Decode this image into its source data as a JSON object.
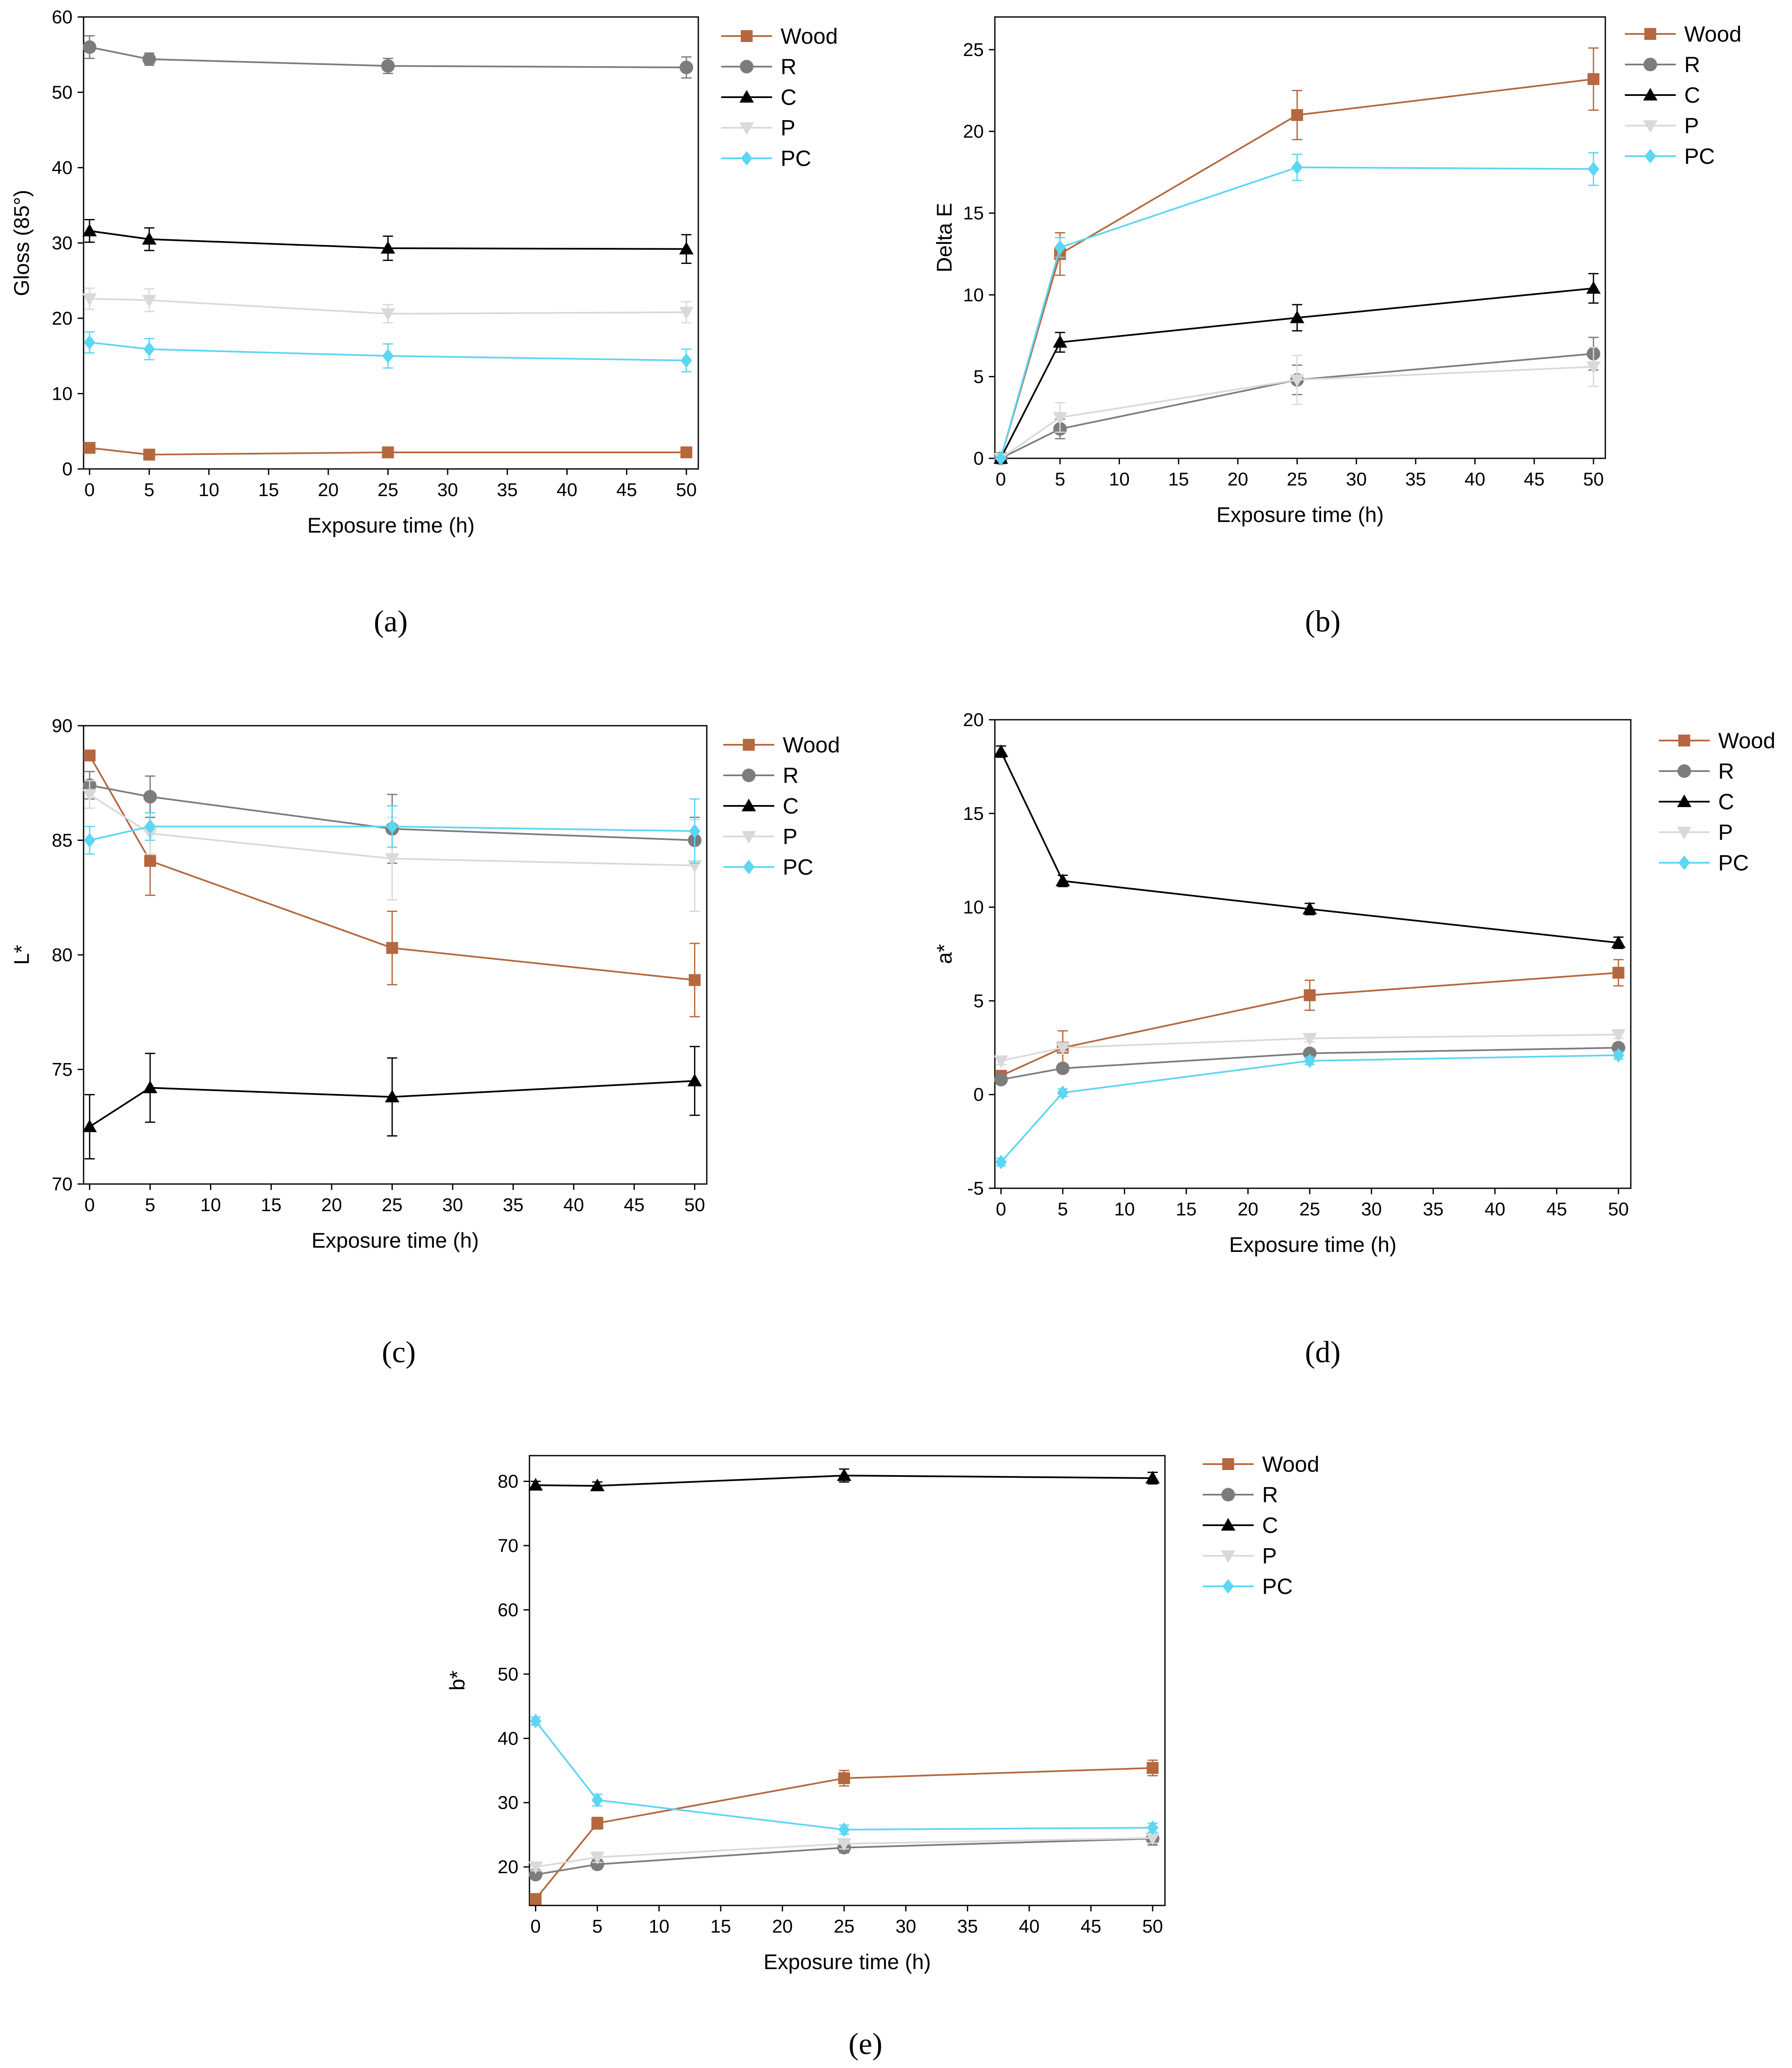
{
  "figure": {
    "series_styles": [
      {
        "name": "Wood",
        "color": "#B5683F",
        "marker": "square"
      },
      {
        "name": "R",
        "color": "#7C7C7C",
        "marker": "circle"
      },
      {
        "name": "C",
        "color": "#000000",
        "marker": "triangle-up"
      },
      {
        "name": "P",
        "color": "#D9D9D9",
        "marker": "triangle-down"
      },
      {
        "name": "PC",
        "color": "#5CD6F2",
        "marker": "diamond"
      }
    ]
  },
  "chart_data": [
    {
      "id": "a",
      "panel_label": "(a)",
      "type": "line",
      "title": "",
      "xlabel": "Exposure time (h)",
      "ylabel": "Gloss (85°)",
      "x": [
        0,
        5,
        25,
        50
      ],
      "xlim": [
        -0.5,
        51
      ],
      "ylim": [
        0,
        60
      ],
      "xticks": [
        0,
        5,
        10,
        15,
        20,
        25,
        30,
        35,
        40,
        45,
        50
      ],
      "yticks": [
        0,
        10,
        20,
        30,
        40,
        50,
        60
      ],
      "legend_position": "right",
      "series": [
        {
          "name": "Wood",
          "values": [
            2.8,
            1.9,
            2.2,
            2.2
          ],
          "errors": [
            0.3,
            0.3,
            0.3,
            0.3
          ]
        },
        {
          "name": "R",
          "values": [
            56.0,
            54.4,
            53.5,
            53.3
          ],
          "errors": [
            1.5,
            0.8,
            1.0,
            1.4
          ]
        },
        {
          "name": "C",
          "values": [
            31.6,
            30.5,
            29.3,
            29.2
          ],
          "errors": [
            1.5,
            1.5,
            1.6,
            1.9
          ]
        },
        {
          "name": "P",
          "values": [
            22.6,
            22.4,
            20.6,
            20.8
          ],
          "errors": [
            1.4,
            1.5,
            1.2,
            1.4
          ]
        },
        {
          "name": "PC",
          "values": [
            16.8,
            15.9,
            15.0,
            14.4
          ],
          "errors": [
            1.4,
            1.4,
            1.6,
            1.5
          ]
        }
      ]
    },
    {
      "id": "b",
      "panel_label": "(b)",
      "type": "line",
      "title": "",
      "xlabel": "Exposure time (h)",
      "ylabel": "Delta E",
      "x": [
        0,
        5,
        25,
        50
      ],
      "xlim": [
        -0.5,
        51
      ],
      "ylim": [
        0,
        27
      ],
      "xticks": [
        0,
        5,
        10,
        15,
        20,
        25,
        30,
        35,
        40,
        45,
        50
      ],
      "yticks": [
        0,
        5,
        10,
        15,
        20,
        25
      ],
      "legend_position": "right",
      "series": [
        {
          "name": "Wood",
          "values": [
            0,
            12.5,
            21.0,
            23.2
          ],
          "errors": [
            0,
            1.3,
            1.5,
            1.9
          ]
        },
        {
          "name": "R",
          "values": [
            0,
            1.8,
            4.8,
            6.4
          ],
          "errors": [
            0,
            0.6,
            0.9,
            1.0
          ]
        },
        {
          "name": "C",
          "values": [
            0,
            7.1,
            8.6,
            10.4
          ],
          "errors": [
            0,
            0.6,
            0.8,
            0.9
          ]
        },
        {
          "name": "P",
          "values": [
            0,
            2.5,
            4.8,
            5.6
          ],
          "errors": [
            0,
            0.9,
            1.5,
            1.2
          ]
        },
        {
          "name": "PC",
          "values": [
            0,
            12.9,
            17.8,
            17.7
          ],
          "errors": [
            0,
            0.6,
            0.8,
            1.0
          ]
        }
      ]
    },
    {
      "id": "c",
      "panel_label": "(c)",
      "type": "line",
      "title": "",
      "xlabel": "Exposure time (h)",
      "ylabel": "L*",
      "x": [
        0,
        5,
        25,
        50
      ],
      "xlim": [
        -0.5,
        51
      ],
      "ylim": [
        70,
        90
      ],
      "xticks": [
        0,
        5,
        10,
        15,
        20,
        25,
        30,
        35,
        40,
        45,
        50
      ],
      "yticks": [
        70,
        75,
        80,
        85,
        90
      ],
      "legend_position": "right",
      "series": [
        {
          "name": "Wood",
          "values": [
            88.7,
            84.1,
            80.3,
            78.9
          ],
          "errors": [
            0.2,
            1.5,
            1.6,
            1.6
          ]
        },
        {
          "name": "R",
          "values": [
            87.4,
            86.9,
            85.5,
            85.0
          ],
          "errors": [
            0.6,
            0.9,
            1.5,
            1.0
          ]
        },
        {
          "name": "C",
          "values": [
            72.5,
            74.2,
            73.8,
            74.5
          ],
          "errors": [
            1.4,
            1.5,
            1.7,
            1.5
          ]
        },
        {
          "name": "P",
          "values": [
            87.0,
            85.3,
            84.2,
            83.9
          ],
          "errors": [
            0.6,
            0.9,
            1.8,
            2.0
          ]
        },
        {
          "name": "PC",
          "values": [
            85.0,
            85.6,
            85.6,
            85.4
          ],
          "errors": [
            0.6,
            0.6,
            0.9,
            1.4
          ]
        }
      ]
    },
    {
      "id": "d",
      "panel_label": "(d)",
      "type": "line",
      "title": "",
      "xlabel": "Exposure time (h)",
      "ylabel": "a*",
      "x": [
        0,
        5,
        25,
        50
      ],
      "xlim": [
        -0.5,
        51
      ],
      "ylim": [
        -5,
        20
      ],
      "xticks": [
        0,
        5,
        10,
        15,
        20,
        25,
        30,
        35,
        40,
        45,
        50
      ],
      "yticks": [
        -5,
        0,
        5,
        10,
        15,
        20
      ],
      "legend_position": "right",
      "series": [
        {
          "name": "Wood",
          "values": [
            1.0,
            2.5,
            5.3,
            6.5
          ],
          "errors": [
            0.2,
            0.9,
            0.8,
            0.7
          ]
        },
        {
          "name": "R",
          "values": [
            0.8,
            1.4,
            2.2,
            2.5
          ],
          "errors": [
            0.2,
            0.2,
            0.2,
            0.2
          ]
        },
        {
          "name": "C",
          "values": [
            18.3,
            11.4,
            9.9,
            8.1
          ],
          "errors": [
            0.3,
            0.3,
            0.3,
            0.3
          ]
        },
        {
          "name": "P",
          "values": [
            1.8,
            2.5,
            3.0,
            3.2
          ],
          "errors": [
            0.2,
            0.2,
            0.2,
            0.2
          ]
        },
        {
          "name": "PC",
          "values": [
            -3.6,
            0.1,
            1.8,
            2.1
          ],
          "errors": [
            0.2,
            0.2,
            0.2,
            0.2
          ]
        }
      ]
    },
    {
      "id": "e",
      "panel_label": "(e)",
      "type": "line",
      "title": "",
      "xlabel": "Exposure time (h)",
      "ylabel": "b*",
      "x": [
        0,
        5,
        25,
        50
      ],
      "xlim": [
        -0.5,
        51
      ],
      "ylim": [
        14,
        84
      ],
      "xticks": [
        0,
        5,
        10,
        15,
        20,
        25,
        30,
        35,
        40,
        45,
        50
      ],
      "yticks": [
        20,
        30,
        40,
        50,
        60,
        70,
        80
      ],
      "legend_position": "right",
      "series": [
        {
          "name": "Wood",
          "values": [
            15.0,
            26.8,
            33.8,
            35.4
          ],
          "errors": [
            0.4,
            0.9,
            1.2,
            1.2
          ]
        },
        {
          "name": "R",
          "values": [
            18.8,
            20.4,
            23.0,
            24.4
          ],
          "errors": [
            0.6,
            0.7,
            0.8,
            1.0
          ]
        },
        {
          "name": "C",
          "values": [
            79.4,
            79.3,
            80.9,
            80.5
          ],
          "errors": [
            0.6,
            0.6,
            1.0,
            0.9
          ]
        },
        {
          "name": "P",
          "values": [
            20.0,
            21.5,
            23.6,
            24.5
          ],
          "errors": [
            0.6,
            0.8,
            0.8,
            0.8
          ]
        },
        {
          "name": "PC",
          "values": [
            42.7,
            30.4,
            25.8,
            26.1
          ],
          "errors": [
            0.6,
            0.9,
            0.7,
            0.7
          ]
        }
      ]
    }
  ]
}
